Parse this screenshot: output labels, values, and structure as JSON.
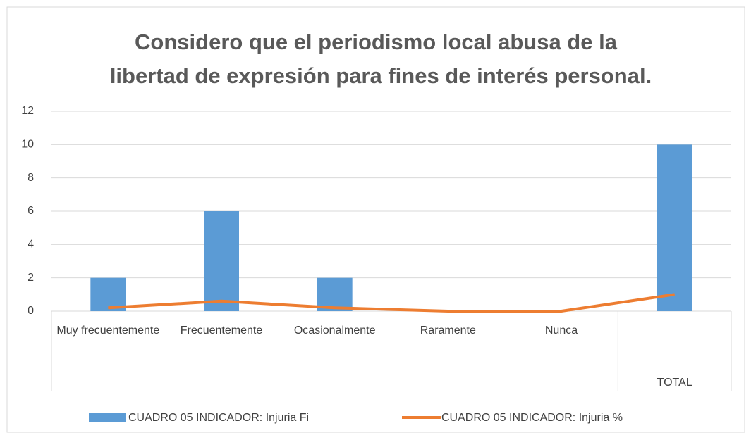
{
  "chart_data": {
    "type": "bar",
    "title": [
      "Considero que el periodismo local abusa de la",
      "libertad de expresión para fines de interés personal."
    ],
    "categories": [
      "Muy frecuentemente",
      "Frecuentemente",
      "Ocasionalmente",
      "Raramente",
      "Nunca",
      "TOTAL"
    ],
    "series": [
      {
        "name": "CUADRO 05 INDICADOR: Injuria Fi",
        "type": "bar",
        "color": "#5b9bd5",
        "values": [
          2,
          6,
          2,
          0,
          0,
          10
        ]
      },
      {
        "name": "CUADRO 05 INDICADOR: Injuria %",
        "type": "line",
        "color": "#ed7d31",
        "values": [
          0.2,
          0.6,
          0.2,
          0,
          0,
          1
        ]
      }
    ],
    "ylim": [
      0,
      12
    ],
    "yticks": [
      0,
      2,
      4,
      6,
      8,
      10,
      12
    ],
    "grid": true,
    "legend": "bottom"
  }
}
